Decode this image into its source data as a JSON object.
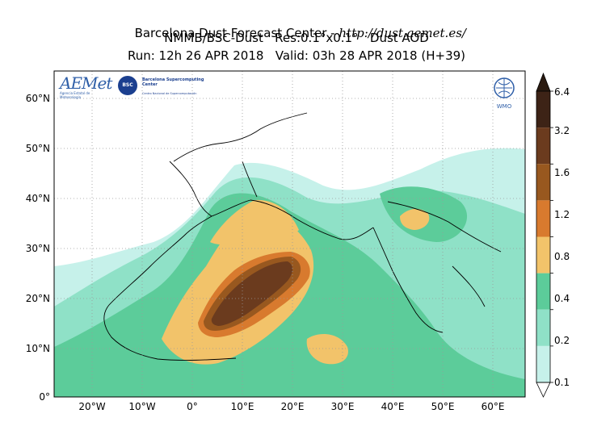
{
  "header": {
    "line1_prefix": "Barcelona Dust Forecast Center - ",
    "line1_url": "http://dust.aemet.es/",
    "line2": "NMMB/BSC-Dust   Res:0.1°x0.1°   Dust AOD",
    "line3": "Run: 12h 26 APR 2018   Valid: 03h 28 APR 2018 (H+39)"
  },
  "map": {
    "lat_labels": [
      "60°N",
      "50°N",
      "40°N",
      "30°N",
      "20°N",
      "10°N",
      "0°"
    ],
    "lon_labels": [
      "20°W",
      "10°W",
      "0°",
      "10°E",
      "20°E",
      "30°E",
      "40°E",
      "50°E",
      "60°E"
    ]
  },
  "logos": {
    "aemet_text": "AEMet",
    "aemet_sub": "Agencia Estatal de Meteorología",
    "bsc_badge": "BSC",
    "bsc_name": "Barcelona Supercomputing Center",
    "bsc_sub": "Centro Nacional de Supercomputación",
    "wmo_text": "WMO"
  },
  "colorbar": {
    "ticks": [
      "6.4",
      "3.2",
      "1.6",
      "1.2",
      "0.8",
      "0.4",
      "0.2",
      "0.1"
    ],
    "colors": [
      "#3d2316",
      "#6b3b1e",
      "#98581f",
      "#d87a2e",
      "#f2c36a",
      "#5ccc9a",
      "#8fe1c7",
      "#c6f1ea"
    ],
    "over_color": "#2a1a10",
    "under_color": "#ffffff"
  }
}
